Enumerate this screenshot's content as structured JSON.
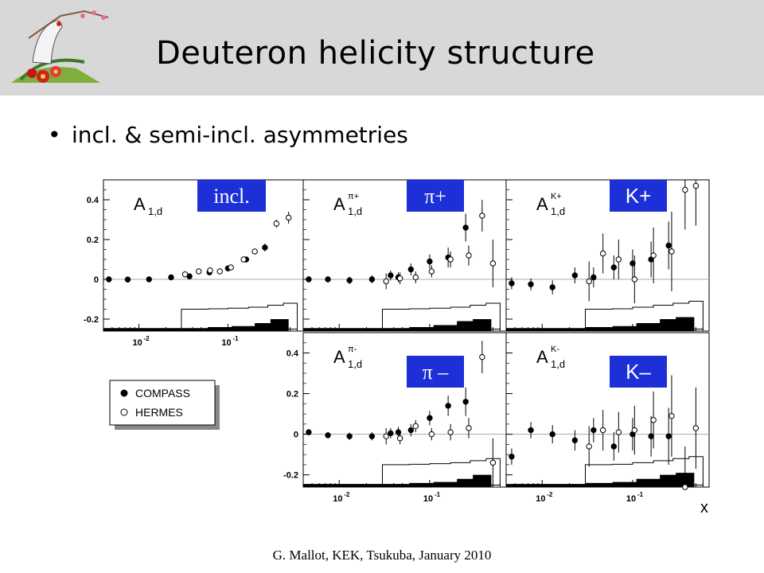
{
  "slide": {
    "title": "Deuteron helicity structure",
    "bullet": "incl. & semi-incl.  asymmetries",
    "footer": "G. Mallot, KEK, Tsukuba, January 2010"
  },
  "colors": {
    "header_bg": "#d8d8d8",
    "tag_bg": "#1d2fd6",
    "tag_text": "#ffffff",
    "zero_line": "#b0a898"
  },
  "icons": {
    "logo": "crane-and-plum-blossom-logo"
  },
  "chart_data": {
    "type": "scatter",
    "x_label": "x",
    "x_scale": "log",
    "x_tick_labels": [
      "10-2",
      "10-1"
    ],
    "y_tick_labels": [
      "-0.2",
      "0",
      "0.2",
      "0.4"
    ],
    "xlim": [
      0.004,
      0.7
    ],
    "ylim": [
      -0.26,
      0.5
    ],
    "legend": {
      "placement": "bottom-left",
      "entries": [
        {
          "name": "COMPASS",
          "marker": "filled-circle"
        },
        {
          "name": "HERMES",
          "marker": "open-circle"
        }
      ]
    },
    "panels": [
      {
        "id": "inclusive",
        "axis_title": "A",
        "axis_sub": "1,d",
        "axis_sup": "",
        "tag": "incl.",
        "compass": [
          [
            0.0046,
            0.0,
            0.004
          ],
          [
            0.0075,
            -0.001,
            0.004
          ],
          [
            0.013,
            0.0,
            0.005
          ],
          [
            0.023,
            0.01,
            0.006
          ],
          [
            0.037,
            0.015,
            0.007
          ],
          [
            0.062,
            0.035,
            0.008
          ],
          [
            0.1,
            0.055,
            0.01
          ],
          [
            0.16,
            0.1,
            0.012
          ],
          [
            0.26,
            0.16,
            0.02
          ]
        ],
        "hermes": [
          [
            0.033,
            0.025,
            0.005
          ],
          [
            0.047,
            0.04,
            0.005
          ],
          [
            0.063,
            0.045,
            0.006
          ],
          [
            0.081,
            0.04,
            0.006
          ],
          [
            0.108,
            0.06,
            0.008
          ],
          [
            0.15,
            0.1,
            0.01
          ],
          [
            0.2,
            0.14,
            0.013
          ],
          [
            0.35,
            0.28,
            0.02
          ],
          [
            0.48,
            0.31,
            0.03
          ]
        ],
        "sys_compass": [
          [
            0.004,
            -0.245
          ],
          [
            0.03,
            -0.245
          ],
          [
            0.06,
            -0.24
          ],
          [
            0.11,
            -0.235
          ],
          [
            0.2,
            -0.22
          ],
          [
            0.3,
            -0.2
          ],
          [
            0.48,
            -0.2
          ]
        ],
        "sys_hermes": [
          [
            0.03,
            -0.15
          ],
          [
            0.06,
            -0.148
          ],
          [
            0.1,
            -0.145
          ],
          [
            0.17,
            -0.14
          ],
          [
            0.28,
            -0.13
          ],
          [
            0.42,
            -0.12
          ],
          [
            0.6,
            -0.12
          ]
        ]
      },
      {
        "id": "pi-plus",
        "axis_title": "A",
        "axis_sub": "1,d",
        "axis_sup": "π+",
        "tag": "π+",
        "compass": [
          [
            0.0046,
            0.0,
            0.015
          ],
          [
            0.0075,
            0.0,
            0.015
          ],
          [
            0.013,
            -0.005,
            0.018
          ],
          [
            0.023,
            0.0,
            0.02
          ],
          [
            0.037,
            0.02,
            0.025
          ],
          [
            0.045,
            0.01,
            0.025
          ],
          [
            0.062,
            0.05,
            0.03
          ],
          [
            0.1,
            0.09,
            0.035
          ],
          [
            0.16,
            0.11,
            0.05
          ],
          [
            0.25,
            0.26,
            0.07
          ]
        ],
        "hermes": [
          [
            0.033,
            -0.01,
            0.04
          ],
          [
            0.047,
            0.005,
            0.03
          ],
          [
            0.07,
            0.01,
            0.03
          ],
          [
            0.105,
            0.04,
            0.03
          ],
          [
            0.17,
            0.1,
            0.04
          ],
          [
            0.27,
            0.12,
            0.05
          ],
          [
            0.38,
            0.32,
            0.08
          ],
          [
            0.5,
            0.08,
            0.12
          ]
        ],
        "sys_compass": [
          [
            0.004,
            -0.245
          ],
          [
            0.03,
            -0.245
          ],
          [
            0.06,
            -0.24
          ],
          [
            0.11,
            -0.23
          ],
          [
            0.2,
            -0.21
          ],
          [
            0.3,
            -0.2
          ],
          [
            0.48,
            -0.2
          ]
        ],
        "sys_hermes": [
          [
            0.03,
            -0.15
          ],
          [
            0.06,
            -0.148
          ],
          [
            0.1,
            -0.145
          ],
          [
            0.17,
            -0.14
          ],
          [
            0.28,
            -0.13
          ],
          [
            0.42,
            -0.12
          ],
          [
            0.6,
            -0.12
          ]
        ]
      },
      {
        "id": "k-plus",
        "axis_title": "A",
        "axis_sub": "1,d",
        "axis_sup": "K+",
        "tag": "K+",
        "compass": [
          [
            0.0046,
            -0.02,
            0.03
          ],
          [
            0.0075,
            -0.025,
            0.03
          ],
          [
            0.013,
            -0.04,
            0.035
          ],
          [
            0.023,
            0.02,
            0.04
          ],
          [
            0.037,
            0.01,
            0.05
          ],
          [
            0.062,
            0.06,
            0.06
          ],
          [
            0.1,
            0.08,
            0.07
          ],
          [
            0.16,
            0.1,
            0.09
          ],
          [
            0.25,
            0.17,
            0.12
          ]
        ],
        "hermes": [
          [
            0.033,
            -0.01,
            0.1
          ],
          [
            0.047,
            0.13,
            0.1
          ],
          [
            0.07,
            0.1,
            0.1
          ],
          [
            0.105,
            0.0,
            0.12
          ],
          [
            0.17,
            0.12,
            0.14
          ],
          [
            0.27,
            0.14,
            0.2
          ],
          [
            0.38,
            0.45,
            0.2
          ],
          [
            0.5,
            0.47,
            0.2
          ]
        ],
        "sys_compass": [
          [
            0.004,
            -0.245
          ],
          [
            0.03,
            -0.24
          ],
          [
            0.06,
            -0.235
          ],
          [
            0.11,
            -0.22
          ],
          [
            0.2,
            -0.2
          ],
          [
            0.3,
            -0.19
          ],
          [
            0.48,
            -0.19
          ]
        ],
        "sys_hermes": [
          [
            0.03,
            -0.15
          ],
          [
            0.06,
            -0.148
          ],
          [
            0.1,
            -0.14
          ],
          [
            0.17,
            -0.13
          ],
          [
            0.28,
            -0.12
          ],
          [
            0.42,
            -0.11
          ],
          [
            0.6,
            -0.11
          ]
        ]
      },
      {
        "id": "pi-minus",
        "axis_title": "A",
        "axis_sub": "1,d",
        "axis_sup": "π-",
        "tag": "π –",
        "compass": [
          [
            0.0046,
            0.01,
            0.015
          ],
          [
            0.0075,
            -0.005,
            0.015
          ],
          [
            0.013,
            -0.01,
            0.018
          ],
          [
            0.023,
            -0.01,
            0.02
          ],
          [
            0.037,
            0.005,
            0.025
          ],
          [
            0.045,
            0.01,
            0.025
          ],
          [
            0.062,
            0.02,
            0.03
          ],
          [
            0.1,
            0.08,
            0.035
          ],
          [
            0.16,
            0.14,
            0.05
          ],
          [
            0.25,
            0.16,
            0.07
          ]
        ],
        "hermes": [
          [
            0.033,
            -0.01,
            0.04
          ],
          [
            0.047,
            -0.02,
            0.03
          ],
          [
            0.07,
            0.04,
            0.03
          ],
          [
            0.105,
            0.0,
            0.03
          ],
          [
            0.17,
            0.01,
            0.04
          ],
          [
            0.27,
            0.03,
            0.05
          ],
          [
            0.38,
            0.38,
            0.08
          ],
          [
            0.5,
            -0.14,
            0.12
          ]
        ],
        "sys_compass": [
          [
            0.004,
            -0.245
          ],
          [
            0.03,
            -0.245
          ],
          [
            0.06,
            -0.24
          ],
          [
            0.11,
            -0.235
          ],
          [
            0.2,
            -0.22
          ],
          [
            0.3,
            -0.2
          ],
          [
            0.48,
            -0.2
          ]
        ],
        "sys_hermes": [
          [
            0.03,
            -0.15
          ],
          [
            0.06,
            -0.148
          ],
          [
            0.1,
            -0.145
          ],
          [
            0.17,
            -0.14
          ],
          [
            0.28,
            -0.13
          ],
          [
            0.42,
            -0.12
          ],
          [
            0.6,
            -0.12
          ]
        ]
      },
      {
        "id": "k-minus",
        "axis_title": "A",
        "axis_sub": "1,d",
        "axis_sup": "K-",
        "tag": "K–",
        "compass": [
          [
            0.0046,
            -0.11,
            0.04
          ],
          [
            0.0075,
            0.02,
            0.04
          ],
          [
            0.013,
            0.0,
            0.045
          ],
          [
            0.023,
            -0.03,
            0.05
          ],
          [
            0.037,
            0.02,
            0.06
          ],
          [
            0.062,
            -0.06,
            0.07
          ],
          [
            0.1,
            0.0,
            0.08
          ],
          [
            0.16,
            -0.01,
            0.1
          ],
          [
            0.25,
            -0.01,
            0.14
          ]
        ],
        "hermes": [
          [
            0.033,
            -0.06,
            0.1
          ],
          [
            0.047,
            0.02,
            0.1
          ],
          [
            0.07,
            0.01,
            0.1
          ],
          [
            0.105,
            0.02,
            0.12
          ],
          [
            0.17,
            0.07,
            0.14
          ],
          [
            0.27,
            0.09,
            0.2
          ],
          [
            0.38,
            -0.26,
            0.2
          ],
          [
            0.5,
            0.03,
            0.2
          ]
        ],
        "sys_compass": [
          [
            0.004,
            -0.245
          ],
          [
            0.03,
            -0.24
          ],
          [
            0.06,
            -0.235
          ],
          [
            0.11,
            -0.22
          ],
          [
            0.2,
            -0.2
          ],
          [
            0.3,
            -0.19
          ],
          [
            0.48,
            -0.19
          ]
        ],
        "sys_hermes": [
          [
            0.03,
            -0.15
          ],
          [
            0.06,
            -0.148
          ],
          [
            0.1,
            -0.14
          ],
          [
            0.17,
            -0.13
          ],
          [
            0.28,
            -0.12
          ],
          [
            0.42,
            -0.11
          ],
          [
            0.6,
            -0.11
          ]
        ]
      }
    ]
  }
}
